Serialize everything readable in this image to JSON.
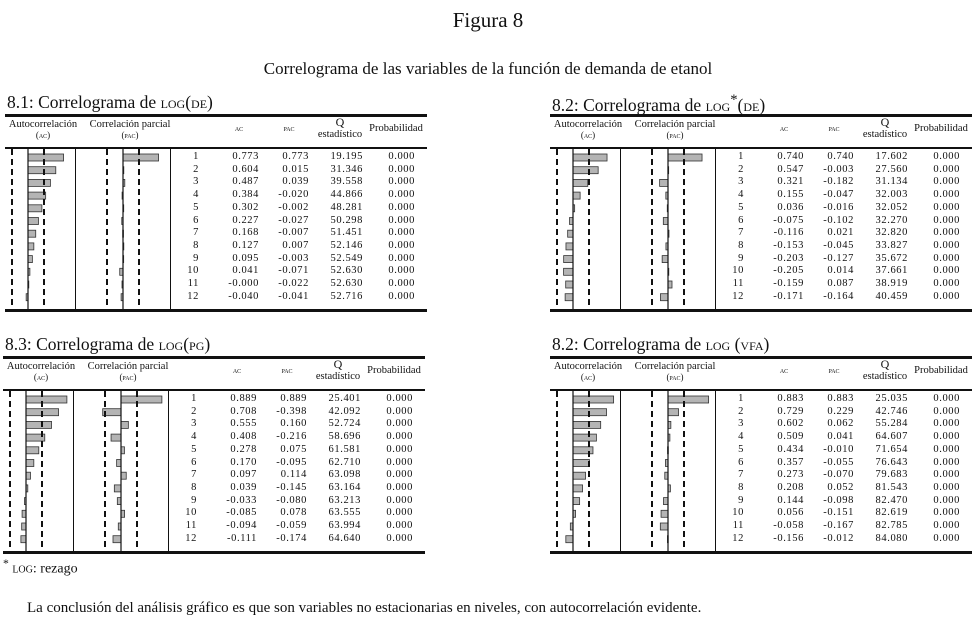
{
  "figure_title": "Figura 8",
  "figure_subtitle": "Correlograma de las variables de la función de demanda de etanol",
  "headers": {
    "ac_plot": "Autocorrelación",
    "ac_plot_abbr": "(ac)",
    "pac_plot": "Correlación parcial",
    "pac_plot_abbr": "(pac)",
    "ac": "ac",
    "pac": "pac",
    "q": "Q",
    "q2": "estadístico",
    "prob": "Probabilidad"
  },
  "panels": [
    {
      "prefix": "8.1: Correlograma de ",
      "log": "log",
      "var": "(de)",
      "lags": [
        1,
        2,
        3,
        4,
        5,
        6,
        7,
        8,
        9,
        10,
        11,
        12
      ],
      "ac": [
        "0.773",
        "0.604",
        "0.487",
        "0.384",
        "0.302",
        "0.227",
        "0.168",
        "0.127",
        "0.095",
        "0.041",
        "-0.000",
        "-0.040"
      ],
      "pac": [
        "0.773",
        "0.015",
        "0.039",
        "-0.020",
        "-0.002",
        "-0.027",
        "-0.007",
        "0.007",
        "-0.003",
        "-0.071",
        "-0.022",
        "-0.041"
      ],
      "q": [
        "19.195",
        "31.346",
        "39.558",
        "44.866",
        "48.281",
        "50.298",
        "51.451",
        "52.146",
        "52.549",
        "52.630",
        "52.630",
        "52.716"
      ],
      "prob": [
        "0.000",
        "0.000",
        "0.000",
        "0.000",
        "0.000",
        "0.000",
        "0.000",
        "0.000",
        "0.000",
        "0.000",
        "0.000",
        "0.000"
      ]
    },
    {
      "prefix": "8.2: Correlograma de ",
      "log": "log",
      "sup": "*",
      "var": "(de)",
      "lags": [
        1,
        2,
        3,
        4,
        5,
        6,
        7,
        8,
        9,
        10,
        11,
        12
      ],
      "ac": [
        "0.740",
        "0.547",
        "0.321",
        "0.155",
        "0.036",
        "-0.075",
        "-0.116",
        "-0.153",
        "-0.203",
        "-0.205",
        "-0.159",
        "-0.171"
      ],
      "pac": [
        "0.740",
        "-0.003",
        "-0.182",
        "-0.047",
        "-0.016",
        "-0.102",
        "0.021",
        "-0.045",
        "-0.127",
        "0.014",
        "0.087",
        "-0.164"
      ],
      "q": [
        "17.602",
        "27.560",
        "31.134",
        "32.003",
        "32.052",
        "32.270",
        "32.820",
        "33.827",
        "35.672",
        "37.661",
        "38.919",
        "40.459"
      ],
      "prob": [
        "0.000",
        "0.000",
        "0.000",
        "0.000",
        "0.000",
        "0.000",
        "0.000",
        "0.000",
        "0.000",
        "0.000",
        "0.000",
        "0.000"
      ]
    },
    {
      "prefix": "8.3: Correlograma de ",
      "log": "log",
      "var": "(pg)",
      "lags": [
        1,
        2,
        3,
        4,
        5,
        6,
        7,
        8,
        9,
        10,
        11,
        12
      ],
      "ac": [
        "0.889",
        "0.708",
        "0.555",
        "0.408",
        "0.278",
        "0.170",
        "0.097",
        "0.039",
        "-0.033",
        "-0.085",
        "-0.094",
        "-0.111"
      ],
      "pac": [
        "0.889",
        "-0.398",
        "0.160",
        "-0.216",
        "0.075",
        "-0.095",
        "0.114",
        "-0.145",
        "-0.080",
        "0.078",
        "-0.059",
        "-0.174"
      ],
      "q": [
        "25.401",
        "42.092",
        "52.724",
        "58.696",
        "61.581",
        "62.710",
        "63.098",
        "63.164",
        "63.213",
        "63.555",
        "63.994",
        "64.640"
      ],
      "prob": [
        "0.000",
        "0.000",
        "0.000",
        "0.000",
        "0.000",
        "0.000",
        "0.000",
        "0.000",
        "0.000",
        "0.000",
        "0.000",
        "0.000"
      ]
    },
    {
      "prefix": "8.2: Correlograma de ",
      "log": "log",
      "var": " (vfa)",
      "lags": [
        1,
        2,
        3,
        4,
        5,
        6,
        7,
        8,
        9,
        10,
        11,
        12
      ],
      "ac": [
        "0.883",
        "0.729",
        "0.602",
        "0.509",
        "0.434",
        "0.357",
        "0.273",
        "0.208",
        "0.144",
        "0.056",
        "-0.058",
        "-0.156"
      ],
      "pac": [
        "0.883",
        "0.229",
        "0.062",
        "0.041",
        "-0.010",
        "-0.055",
        "-0.070",
        "0.052",
        "-0.098",
        "-0.151",
        "-0.167",
        "-0.012"
      ],
      "q": [
        "25.035",
        "42.746",
        "55.284",
        "64.607",
        "71.654",
        "76.643",
        "79.683",
        "81.543",
        "82.470",
        "82.619",
        "82.785",
        "84.080"
      ],
      "prob": [
        "0.000",
        "0.000",
        "0.000",
        "0.000",
        "0.000",
        "0.000",
        "0.000",
        "0.000",
        "0.000",
        "0.000",
        "0.000",
        "0.000"
      ]
    }
  ],
  "footnote": {
    "mark": "*",
    "log": "log",
    "text": ": rezago"
  },
  "conclusion": "La conclusión del análisis gráfico es que son variables no estacionarias en niveles, con autocorrelación evidente.",
  "colors": {
    "bar_fill": "#b4b4b4",
    "bar_stroke": "#333333",
    "ink": "#111111"
  }
}
